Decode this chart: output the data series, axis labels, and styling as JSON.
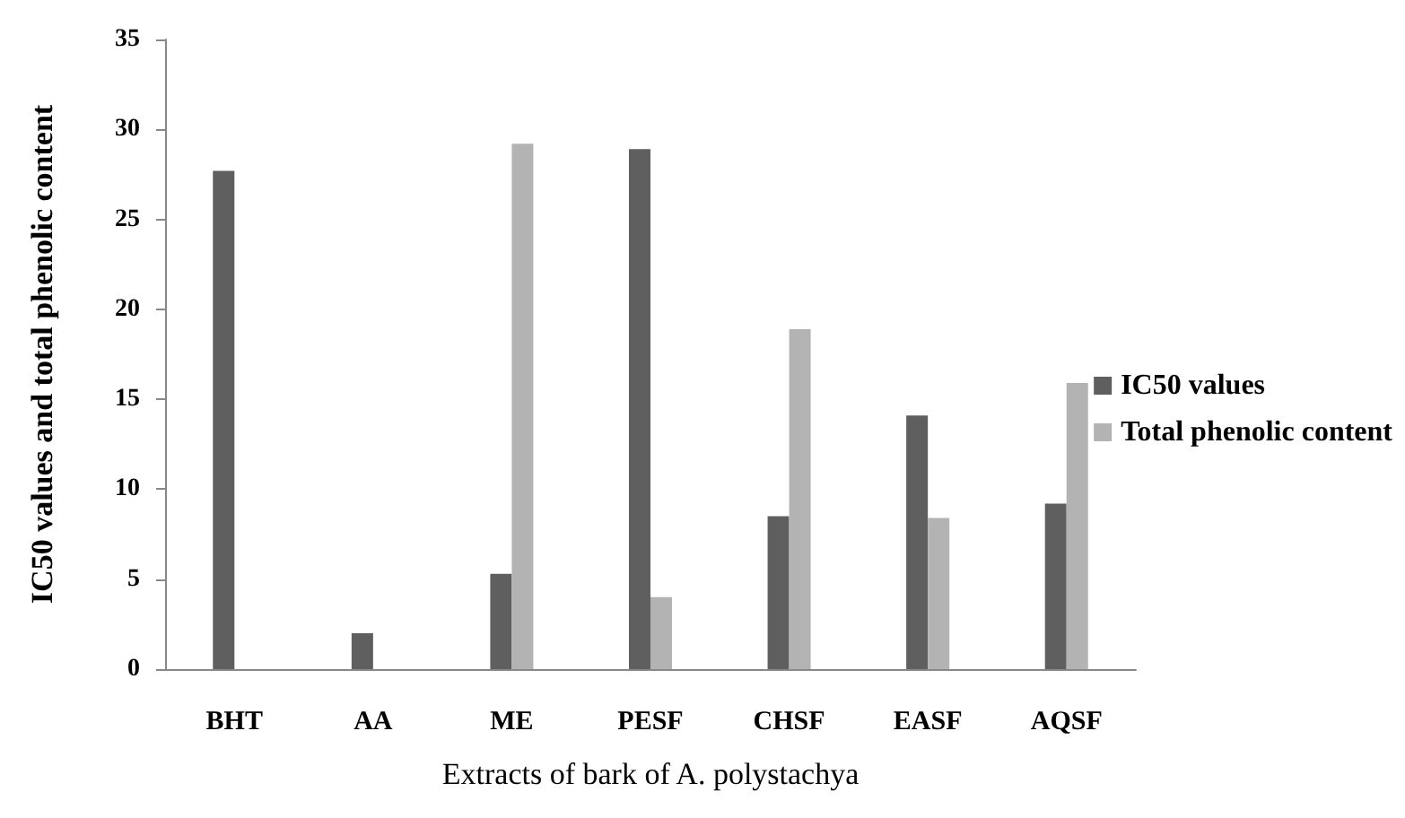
{
  "chart_data": {
    "type": "bar",
    "categories": [
      "BHT",
      "AA",
      "ME",
      "PESF",
      "CHSF",
      "EASF",
      "AQSF"
    ],
    "series": [
      {
        "name": "IC50 values",
        "color": "#5f5f5f",
        "values": [
          27.7,
          2.0,
          5.3,
          28.9,
          8.5,
          14.1,
          9.2
        ]
      },
      {
        "name": "Total phenolic content",
        "color": "#b3b3b3",
        "values": [
          null,
          null,
          29.2,
          4.0,
          18.9,
          8.4,
          15.9
        ]
      }
    ],
    "xlabel": "Extracts of bark of A. polystachya",
    "ylabel": "IC50 values and total phenolic content",
    "ylim": [
      0,
      35
    ],
    "yticks": [
      0,
      5,
      10,
      15,
      20,
      25,
      30,
      35
    ],
    "grid": false,
    "legend": "right"
  }
}
